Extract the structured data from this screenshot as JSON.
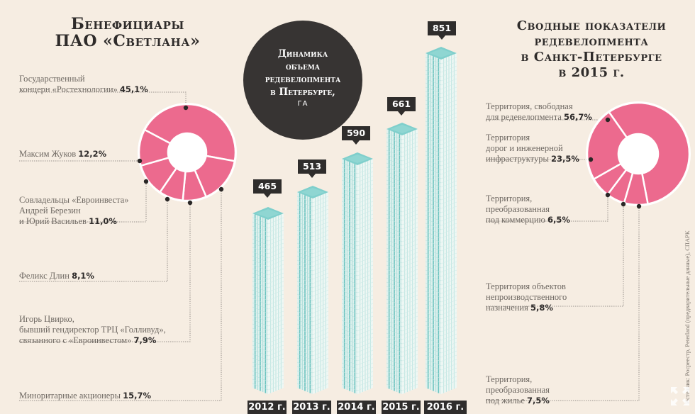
{
  "left_panel": {
    "title": "Бенефициары\nПАО «Светлана»",
    "items": [
      {
        "label": "Государственный\nконцерн «Ростехнологии»",
        "value": "45,1%"
      },
      {
        "label": "Максим Жуков",
        "value": "12,2%"
      },
      {
        "label": "Совладельцы «Евроинвеста»\nАндрей Березин\nи Юрий Васильев",
        "value": "11,0%"
      },
      {
        "label": "Феликс Длин",
        "value": "8,1%"
      },
      {
        "label": "Игорь Цвирко,\nбывший гендиректор ТРЦ «Голливуд»,\nсвязанного с «Евроинвестом»",
        "value": "7,9%"
      },
      {
        "label": "Миноритарные акционеры",
        "value": "15,7%"
      }
    ]
  },
  "center_panel": {
    "title": "Динамика\nобъема\nредевелопмента\nв Петербурге,",
    "unit": "ГА",
    "bars": [
      {
        "year": "2012 г.",
        "value": "465"
      },
      {
        "year": "2013 г.",
        "value": "513"
      },
      {
        "year": "2014 г.",
        "value": "590"
      },
      {
        "year": "2015 г.",
        "value": "661"
      },
      {
        "year": "2016 г.",
        "value": "851"
      }
    ]
  },
  "right_panel": {
    "title": "Сводные показатели\nредевелопмента\nв Санкт-Петербурге\nв 2015 г.",
    "items": [
      {
        "label": "Территория, свободная\nдля редевелопмента",
        "value": "56,7%"
      },
      {
        "label": "Территория\nдорог и инженерной\nинфраструктуры",
        "value": "23,5%"
      },
      {
        "label": "Территория,\nпреобразованная\nпод коммерцию",
        "value": "6,5%"
      },
      {
        "label": "Территория объектов\nнепроизводственного\nназначения",
        "value": "5,8%"
      },
      {
        "label": "Территория,\nпреобразованная\nпод жилье",
        "value": "7,5%"
      }
    ]
  },
  "source": "Источник: Росреестр, Peterland (предварительные данные), СПАРК",
  "colors": {
    "background": "#f6ede2",
    "donut": "#ec6a8e",
    "dark": "#373433",
    "building_top": "#7fcfcc",
    "building_line": "#6cc3bf"
  },
  "chart_data": [
    {
      "type": "pie",
      "title": "Бенефициары ПАО «Светлана»",
      "categories": [
        "Государственный концерн «Ростехнологии»",
        "Максим Жуков",
        "Совладельцы «Евроинвеста» Андрей Березин и Юрий Васильев",
        "Феликс Длин",
        "Игорь Цвирко",
        "Миноритарные акционеры"
      ],
      "values": [
        45.1,
        12.2,
        11.0,
        8.1,
        7.9,
        15.7
      ],
      "unit": "%"
    },
    {
      "type": "bar",
      "title": "Динамика объема редевелопмента в Петербурге, га",
      "categories": [
        "2012 г.",
        "2013 г.",
        "2014 г.",
        "2015 г.",
        "2016 г."
      ],
      "values": [
        465,
        513,
        590,
        661,
        851
      ],
      "ylabel": "га",
      "ylim": [
        0,
        900
      ]
    },
    {
      "type": "pie",
      "title": "Сводные показатели редевелопмента в Санкт-Петербурге в 2015 г.",
      "categories": [
        "Территория, свободная для редевелопмента",
        "Территория дорог и инженерной инфраструктуры",
        "Территория, преобразованная под коммерцию",
        "Территория объектов непроизводственного назначения",
        "Территория, преобразованная под жилье"
      ],
      "values": [
        56.7,
        23.5,
        6.5,
        5.8,
        7.5
      ],
      "unit": "%"
    }
  ]
}
